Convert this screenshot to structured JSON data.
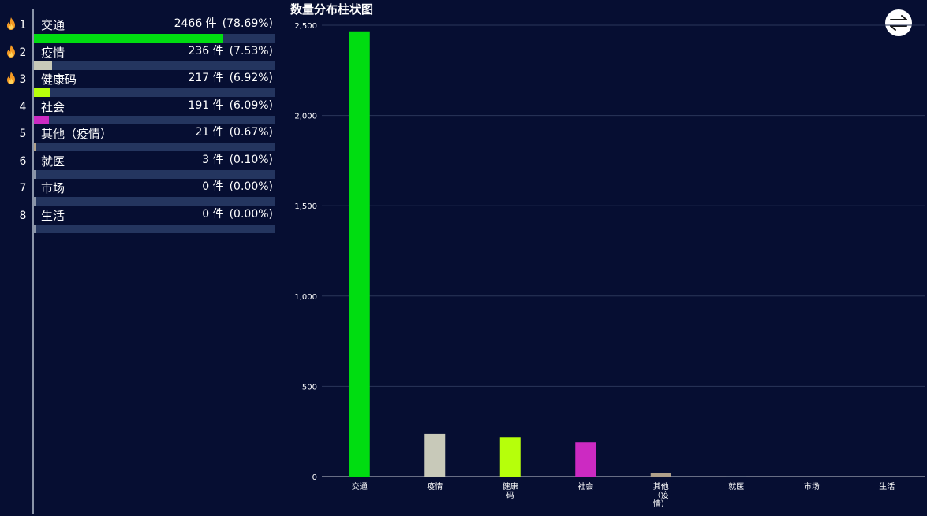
{
  "ranking": {
    "unit": "件",
    "items": [
      {
        "rank": "1",
        "label": "交通",
        "count": 2466,
        "percent": "(78.69%)",
        "fraction": 0.7869,
        "color": "#00dd11",
        "hot": true
      },
      {
        "rank": "2",
        "label": "疫情",
        "count": 236,
        "percent": "(7.53%)",
        "fraction": 0.0753,
        "color": "#c8c9b9",
        "hot": true
      },
      {
        "rank": "3",
        "label": "健康码",
        "count": 217,
        "percent": "(6.92%)",
        "fraction": 0.0692,
        "color": "#b6ff0b",
        "hot": true
      },
      {
        "rank": "4",
        "label": "社会",
        "count": 191,
        "percent": "(6.09%)",
        "fraction": 0.0609,
        "color": "#cc2ac2",
        "hot": false
      },
      {
        "rank": "5",
        "label": "其他（疫情）",
        "count": 21,
        "percent": "(0.67%)",
        "fraction": 0.0067,
        "color": "#b0a08a",
        "hot": false
      },
      {
        "rank": "6",
        "label": "就医",
        "count": 3,
        "percent": "(0.10%)",
        "fraction": 0.001,
        "color": "#8a94a8",
        "hot": false
      },
      {
        "rank": "7",
        "label": "市场",
        "count": 0,
        "percent": "(0.00%)",
        "fraction": 0.0,
        "color": "#8a94a8",
        "hot": false
      },
      {
        "rank": "8",
        "label": "生活",
        "count": 0,
        "percent": "(0.00%)",
        "fraction": 0.0,
        "color": "#8a94a8",
        "hot": false
      }
    ]
  },
  "icons": {
    "hot": "fire-icon",
    "swap": "swap-arrows-icon"
  },
  "chart_data": {
    "type": "bar",
    "title": "数量分布柱状图",
    "categories": [
      "交通",
      "疫情",
      "健康码",
      "社会",
      "其他（疫情）",
      "就医",
      "市场",
      "生活"
    ],
    "category_tick_lines": [
      [
        "交通"
      ],
      [
        "疫情"
      ],
      [
        "健康",
        "码"
      ],
      [
        "社会"
      ],
      [
        "其他",
        "（疫",
        "情）"
      ],
      [
        "就医"
      ],
      [
        "市场"
      ],
      [
        "生活"
      ]
    ],
    "values": [
      2466,
      236,
      217,
      191,
      21,
      3,
      0,
      0
    ],
    "colors": [
      "#00dd11",
      "#c8c9b9",
      "#b6ff0b",
      "#cc2ac2",
      "#b0a08a",
      "#8a94a8",
      "#8a94a8",
      "#8a94a8"
    ],
    "ylim": [
      0,
      2500
    ],
    "yticks": [
      0,
      500,
      1000,
      1500,
      2000,
      2500
    ],
    "ytick_labels": [
      "0",
      "500",
      "1,000",
      "1,500",
      "2,000",
      "2,500"
    ],
    "grid": true,
    "xlabel": "",
    "ylabel": ""
  }
}
